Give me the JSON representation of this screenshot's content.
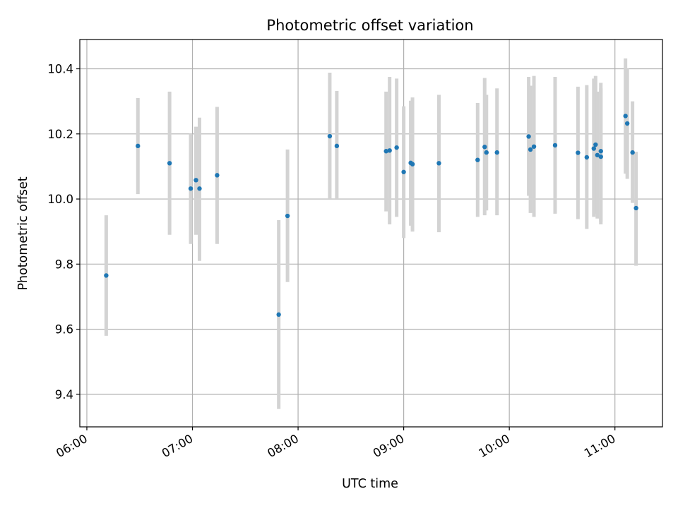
{
  "chart_data": {
    "type": "scatter",
    "title": "Photometric offset variation",
    "xlabel": "UTC time",
    "ylabel": "Photometric offset",
    "x_unit": "UTC time (HH:MM)",
    "xlim": [
      "05:56",
      "11:27"
    ],
    "ylim": [
      9.3,
      10.49
    ],
    "x_ticks": [
      "06:00",
      "07:00",
      "08:00",
      "09:00",
      "10:00",
      "11:00"
    ],
    "y_ticks": [
      "9.4",
      "9.6",
      "9.8",
      "10.0",
      "10.2",
      "10.4"
    ],
    "grid": true,
    "marker_color": "#1f77b4",
    "errorbar_color": "#d3d3d3",
    "points": [
      {
        "t": "06:11",
        "y": 9.765,
        "lo": 9.58,
        "hi": 9.95
      },
      {
        "t": "06:29",
        "y": 10.163,
        "lo": 10.015,
        "hi": 10.31
      },
      {
        "t": "06:47",
        "y": 10.11,
        "lo": 9.89,
        "hi": 10.33
      },
      {
        "t": "06:59",
        "y": 10.032,
        "lo": 9.862,
        "hi": 10.2
      },
      {
        "t": "07:02",
        "y": 10.058,
        "lo": 9.89,
        "hi": 10.222
      },
      {
        "t": "07:04",
        "y": 10.032,
        "lo": 9.81,
        "hi": 10.25
      },
      {
        "t": "07:14",
        "y": 10.073,
        "lo": 9.862,
        "hi": 10.283
      },
      {
        "t": "07:49",
        "y": 9.645,
        "lo": 9.355,
        "hi": 9.935
      },
      {
        "t": "07:54",
        "y": 9.948,
        "lo": 9.745,
        "hi": 10.152
      },
      {
        "t": "08:18",
        "y": 10.193,
        "lo": 10.0,
        "hi": 10.388
      },
      {
        "t": "08:22",
        "y": 10.163,
        "lo": 10.0,
        "hi": 10.332
      },
      {
        "t": "08:50",
        "y": 10.147,
        "lo": 9.962,
        "hi": 10.33
      },
      {
        "t": "08:52",
        "y": 10.149,
        "lo": 9.922,
        "hi": 10.375
      },
      {
        "t": "08:56",
        "y": 10.158,
        "lo": 9.945,
        "hi": 10.37
      },
      {
        "t": "09:00",
        "y": 10.083,
        "lo": 9.88,
        "hi": 10.285
      },
      {
        "t": "09:04",
        "y": 10.111,
        "lo": 9.918,
        "hi": 10.302
      },
      {
        "t": "09:05",
        "y": 10.107,
        "lo": 9.9,
        "hi": 10.312
      },
      {
        "t": "09:20",
        "y": 10.11,
        "lo": 9.898,
        "hi": 10.32
      },
      {
        "t": "09:42",
        "y": 10.12,
        "lo": 9.945,
        "hi": 10.295
      },
      {
        "t": "09:46",
        "y": 10.16,
        "lo": 9.95,
        "hi": 10.372
      },
      {
        "t": "09:47",
        "y": 10.143,
        "lo": 9.965,
        "hi": 10.32
      },
      {
        "t": "09:53",
        "y": 10.143,
        "lo": 9.95,
        "hi": 10.34
      },
      {
        "t": "10:11",
        "y": 10.192,
        "lo": 10.01,
        "hi": 10.375
      },
      {
        "t": "10:12",
        "y": 10.152,
        "lo": 9.957,
        "hi": 10.348
      },
      {
        "t": "10:14",
        "y": 10.161,
        "lo": 9.945,
        "hi": 10.378
      },
      {
        "t": "10:26",
        "y": 10.165,
        "lo": 9.955,
        "hi": 10.375
      },
      {
        "t": "10:39",
        "y": 10.142,
        "lo": 9.938,
        "hi": 10.345
      },
      {
        "t": "10:44",
        "y": 10.128,
        "lo": 9.908,
        "hi": 10.35
      },
      {
        "t": "10:48",
        "y": 10.155,
        "lo": 9.945,
        "hi": 10.37
      },
      {
        "t": "10:49",
        "y": 10.167,
        "lo": 9.955,
        "hi": 10.378
      },
      {
        "t": "10:50",
        "y": 10.135,
        "lo": 9.94,
        "hi": 10.33
      },
      {
        "t": "10:52",
        "y": 10.147,
        "lo": 9.93,
        "hi": 10.357
      },
      {
        "t": "10:52",
        "y": 10.13,
        "lo": 9.922,
        "hi": 10.34
      },
      {
        "t": "11:06",
        "y": 10.255,
        "lo": 10.078,
        "hi": 10.432
      },
      {
        "t": "11:07",
        "y": 10.232,
        "lo": 10.062,
        "hi": 10.4
      },
      {
        "t": "11:10",
        "y": 10.143,
        "lo": 9.988,
        "hi": 10.3
      },
      {
        "t": "11:12",
        "y": 9.972,
        "lo": 9.795,
        "hi": 10.145
      }
    ]
  }
}
